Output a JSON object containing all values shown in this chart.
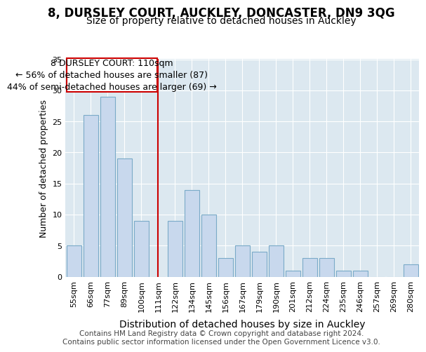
{
  "title1": "8, DURSLEY COURT, AUCKLEY, DONCASTER, DN9 3QG",
  "title2": "Size of property relative to detached houses in Auckley",
  "xlabel": "Distribution of detached houses by size in Auckley",
  "ylabel": "Number of detached properties",
  "categories": [
    "55sqm",
    "66sqm",
    "77sqm",
    "89sqm",
    "100sqm",
    "111sqm",
    "122sqm",
    "134sqm",
    "145sqm",
    "156sqm",
    "167sqm",
    "179sqm",
    "190sqm",
    "201sqm",
    "212sqm",
    "224sqm",
    "235sqm",
    "246sqm",
    "257sqm",
    "269sqm",
    "280sqm"
  ],
  "values": [
    5,
    26,
    29,
    19,
    9,
    0,
    9,
    14,
    10,
    3,
    5,
    4,
    5,
    1,
    3,
    3,
    1,
    1,
    0,
    0,
    2
  ],
  "bar_color": "#c8d8ed",
  "bar_edge_color": "#7aaac8",
  "marker_line_color": "#cc0000",
  "marker_line_index": 5,
  "annotation_text_line1": "8 DURSLEY COURT: 110sqm",
  "annotation_text_line2": "← 56% of detached houses are smaller (87)",
  "annotation_text_line3": "44% of semi-detached houses are larger (69) →",
  "annotation_box_color": "#ffffff",
  "annotation_box_edge": "#cc0000",
  "ylim": [
    0,
    35
  ],
  "yticks": [
    0,
    5,
    10,
    15,
    20,
    25,
    30,
    35
  ],
  "plot_bg_color": "#dce8f0",
  "fig_bg_color": "#ffffff",
  "footer_line1": "Contains HM Land Registry data © Crown copyright and database right 2024.",
  "footer_line2": "Contains public sector information licensed under the Open Government Licence v3.0.",
  "title1_fontsize": 12,
  "title2_fontsize": 10,
  "xlabel_fontsize": 10,
  "ylabel_fontsize": 9,
  "tick_fontsize": 8,
  "annotation_fontsize": 9,
  "footer_fontsize": 7.5
}
